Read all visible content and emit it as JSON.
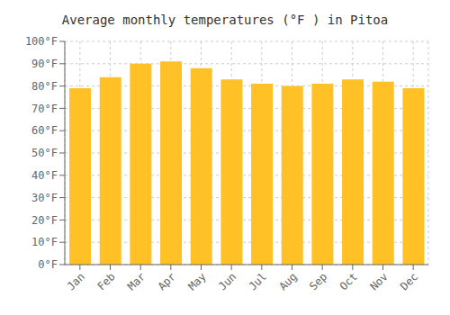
{
  "chart_data": {
    "type": "bar",
    "title": "Average monthly temperatures (°F ) in Pitoa",
    "categories": [
      "Jan",
      "Feb",
      "Mar",
      "Apr",
      "May",
      "Jun",
      "Jul",
      "Aug",
      "Sep",
      "Oct",
      "Nov",
      "Dec"
    ],
    "values": [
      79,
      84,
      90,
      91,
      88,
      83,
      81,
      80,
      81,
      83,
      82,
      79
    ],
    "color": "#FFC125",
    "ylim": [
      0,
      100
    ],
    "yticks": [
      {
        "value": 0,
        "label": "0°F"
      },
      {
        "value": 10,
        "label": "10°F"
      },
      {
        "value": 20,
        "label": "20°F"
      },
      {
        "value": 30,
        "label": "30°F"
      },
      {
        "value": 40,
        "label": "40°F"
      },
      {
        "value": 50,
        "label": "50°F"
      },
      {
        "value": 60,
        "label": "60°F"
      },
      {
        "value": 70,
        "label": "70°F"
      },
      {
        "value": 80,
        "label": "80°F"
      },
      {
        "value": 90,
        "label": "90°F"
      },
      {
        "value": 100,
        "label": "100°F"
      }
    ],
    "grid": true
  }
}
